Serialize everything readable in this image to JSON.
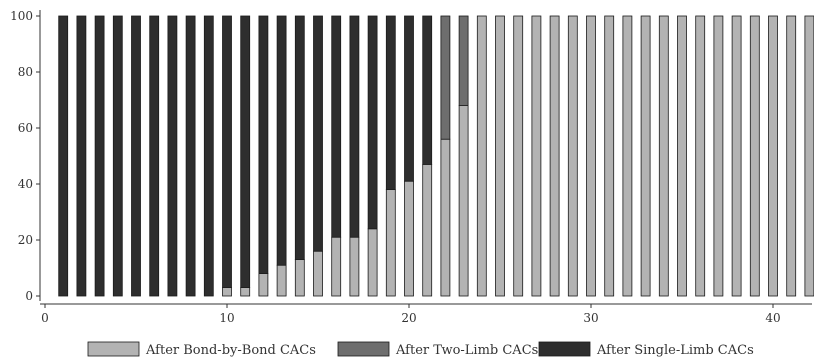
{
  "chart_data": {
    "type": "bar",
    "stacked": true,
    "title": "",
    "xlabel": "",
    "ylabel": "",
    "xlim": [
      0,
      42
    ],
    "ylim": [
      0,
      100
    ],
    "x_ticks": [
      0,
      10,
      20,
      30,
      40
    ],
    "y_ticks": [
      0,
      20,
      40,
      60,
      80,
      100
    ],
    "grid": false,
    "legend_position": "bottom",
    "x": [
      1,
      2,
      3,
      4,
      5,
      6,
      7,
      8,
      9,
      10,
      11,
      12,
      13,
      14,
      15,
      16,
      17,
      18,
      19,
      20,
      21,
      22,
      23,
      24,
      25,
      26,
      27,
      28,
      29,
      30,
      31,
      32,
      33,
      34,
      35,
      36,
      37,
      38,
      39,
      40,
      41,
      42
    ],
    "series": [
      {
        "name": "After Bond-by-Bond CACs",
        "color": "#b3b3b3",
        "values": [
          0,
          0,
          0,
          0,
          0,
          0,
          0,
          0,
          0,
          3,
          3,
          8,
          11,
          13,
          16,
          21,
          21,
          24,
          38,
          41,
          47,
          56,
          68,
          100,
          100,
          100,
          100,
          100,
          100,
          100,
          100,
          100,
          100,
          100,
          100,
          100,
          100,
          100,
          100,
          100,
          100,
          100
        ]
      },
      {
        "name": "After Two-Limb CACs",
        "color": "#6e6e6e",
        "values": [
          0,
          0,
          0,
          0,
          0,
          0,
          0,
          0,
          0,
          0,
          0,
          0,
          0,
          0,
          0,
          0,
          0,
          0,
          0,
          0,
          0,
          44,
          32,
          0,
          0,
          0,
          0,
          0,
          0,
          0,
          0,
          0,
          0,
          0,
          0,
          0,
          0,
          0,
          0,
          0,
          0,
          0
        ]
      },
      {
        "name": "After Single-Limb CACs",
        "color": "#2e2e2e",
        "values": [
          100,
          100,
          100,
          100,
          100,
          100,
          100,
          100,
          100,
          97,
          97,
          92,
          89,
          87,
          84,
          79,
          79,
          76,
          62,
          59,
          53,
          0,
          0,
          0,
          0,
          0,
          0,
          0,
          0,
          0,
          0,
          0,
          0,
          0,
          0,
          0,
          0,
          0,
          0,
          0,
          0,
          0
        ]
      }
    ]
  }
}
